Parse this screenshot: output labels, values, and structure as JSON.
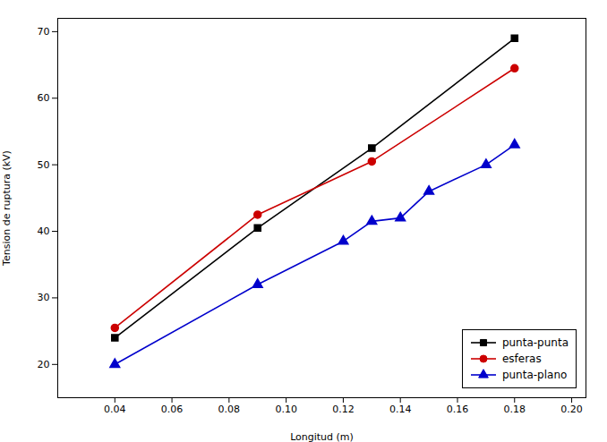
{
  "chart_data": {
    "type": "line",
    "xlabel": "Longitud (m)",
    "ylabel": "Tension de ruptura (kV)",
    "series": [
      {
        "name": "punta-punta",
        "color": "#000000",
        "marker": "square",
        "x": [
          0.04,
          0.09,
          0.13,
          0.18
        ],
        "values": [
          24.0,
          40.5,
          52.5,
          69.0
        ]
      },
      {
        "name": "esferas",
        "color": "#cc0000",
        "marker": "circle",
        "x": [
          0.04,
          0.09,
          0.13,
          0.18
        ],
        "values": [
          25.5,
          42.5,
          50.5,
          64.5
        ]
      },
      {
        "name": "punta-plano",
        "color": "#0000cc",
        "marker": "triangle",
        "x": [
          0.04,
          0.09,
          0.12,
          0.13,
          0.14,
          0.15,
          0.17,
          0.18
        ],
        "values": [
          20.0,
          32.0,
          38.5,
          41.5,
          42.0,
          46.0,
          50.0,
          53.0
        ]
      }
    ],
    "xlim": [
      0.02,
      0.205
    ],
    "ylim": [
      15,
      72
    ],
    "xticks": [
      0.04,
      0.06,
      0.08,
      {
        "value": 0.1,
        "label": "0.10"
      },
      0.12,
      0.14,
      0.16,
      0.18,
      {
        "value": 0.2,
        "label": "0.20"
      }
    ],
    "yticks": [
      20,
      30,
      40,
      50,
      60,
      70
    ],
    "grid": false,
    "legend": "lower right"
  }
}
